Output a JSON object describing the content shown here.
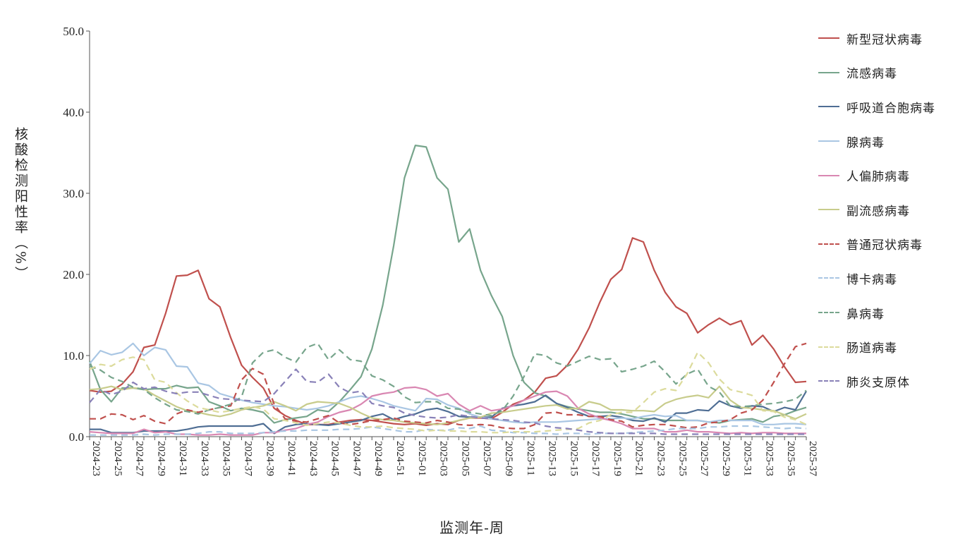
{
  "chart_data": {
    "type": "line",
    "title": "",
    "ylabel": "核酸检测阳性率（%）",
    "xlabel": "监测年-周",
    "ylim": [
      0,
      50
    ],
    "ytick_labels": [
      "0.0",
      "10.0",
      "20.0",
      "30.0",
      "40.0",
      "50.0"
    ],
    "x": [
      "2024-23",
      "2024-24",
      "2024-25",
      "2024-26",
      "2024-27",
      "2024-28",
      "2024-29",
      "2024-30",
      "2024-31",
      "2024-32",
      "2024-33",
      "2024-34",
      "2024-35",
      "2024-36",
      "2024-37",
      "2024-38",
      "2024-39",
      "2024-40",
      "2024-41",
      "2024-42",
      "2024-43",
      "2024-44",
      "2024-45",
      "2024-46",
      "2024-47",
      "2024-48",
      "2024-49",
      "2024-50",
      "2024-51",
      "2024-52",
      "2025-01",
      "2025-02",
      "2025-03",
      "2025-04",
      "2025-05",
      "2025-06",
      "2025-07",
      "2025-08",
      "2025-09",
      "2025-10",
      "2025-11",
      "2025-12",
      "2025-13",
      "2025-14",
      "2025-15",
      "2025-16",
      "2025-17",
      "2025-18",
      "2025-19",
      "2025-20",
      "2025-21",
      "2025-22",
      "2025-23",
      "2025-24",
      "2025-25",
      "2025-26",
      "2025-27",
      "2025-28",
      "2025-29",
      "2025-30",
      "2025-31",
      "2025-32",
      "2025-33",
      "2025-34",
      "2025-35",
      "2025-36",
      "2025-37"
    ],
    "xtick_labels": [
      "2024-23",
      "2024-25",
      "2024-27",
      "2024-29",
      "2024-31",
      "2024-33",
      "2024-35",
      "2024-37",
      "2024-39",
      "2024-41",
      "2024-43",
      "2024-45",
      "2024-47",
      "2024-49",
      "2024-51",
      "2025-01",
      "2025-03",
      "2025-05",
      "2025-07",
      "2025-09",
      "2025-11",
      "2025-13",
      "2025-15",
      "2025-17",
      "2025-19",
      "2025-21",
      "2025-23",
      "2025-25",
      "2025-27",
      "2025-29",
      "2025-31",
      "2025-33",
      "2025-35",
      "2025-37"
    ],
    "legend_position": "right",
    "grid": false,
    "series": [
      {
        "name": "新型冠状病毒",
        "color": "#C0504D",
        "dash": "solid",
        "values": [
          5.7,
          5.5,
          5.6,
          6.5,
          8,
          11,
          11.3,
          15.2,
          19.8,
          19.9,
          20.5,
          17,
          16,
          12.2,
          8.8,
          7.3,
          6,
          3.5,
          2.6,
          2,
          1.5,
          1.5,
          1.5,
          1.8,
          2,
          2.1,
          2,
          1.8,
          1.6,
          1.5,
          1.6,
          1.4,
          1.6,
          1.5,
          2,
          2.3,
          2.3,
          2.2,
          3,
          4,
          4.5,
          5.5,
          7.2,
          7.5,
          8.8,
          10.8,
          13.4,
          16.6,
          19.4,
          20.6,
          24.5,
          24,
          20.5,
          17.8,
          16,
          15.2,
          12.8,
          13.8,
          14.6,
          13.8,
          14.3,
          11.3,
          12.5,
          10.8,
          8.6,
          6.7,
          6.8
        ]
      },
      {
        "name": "流感病毒",
        "color": "#77A58C",
        "dash": "solid",
        "values": [
          9.3,
          5.8,
          4.3,
          6,
          6,
          5.8,
          5.9,
          5.9,
          6.3,
          6,
          6.1,
          4.3,
          3.8,
          3.2,
          3.5,
          3.3,
          3,
          1.7,
          2.1,
          2.3,
          2.5,
          3.3,
          3.1,
          4.3,
          5.8,
          7.4,
          10.8,
          16.2,
          23.5,
          31.9,
          35.9,
          35.7,
          31.9,
          30.5,
          24,
          25.6,
          20.5,
          17.4,
          14.8,
          10,
          6.7,
          5.4,
          5,
          4.1,
          3.7,
          3.4,
          3.2,
          3,
          3,
          2.8,
          2.5,
          2.2,
          2.2,
          2,
          2,
          2,
          2,
          1.8,
          1.7,
          2,
          2.1,
          2.2,
          1.8,
          2.5,
          2.7,
          3.2,
          3.6
        ]
      },
      {
        "name": "呼吸道合胞病毒",
        "color": "#4F6E94",
        "dash": "solid",
        "values": [
          0.9,
          0.9,
          0.5,
          0.5,
          0.5,
          0.7,
          0.7,
          0.7,
          0.7,
          0.9,
          1.2,
          1.3,
          1.3,
          1.3,
          1.3,
          1.3,
          1.6,
          0.4,
          1.2,
          1.5,
          1.6,
          1.5,
          1.4,
          1.6,
          1.8,
          2,
          2.5,
          2.8,
          2.1,
          2.5,
          2.8,
          3.3,
          3.5,
          3.1,
          2.5,
          2.4,
          2.4,
          2.4,
          3.5,
          3.8,
          4,
          4.3,
          5.1,
          4.1,
          3.6,
          3,
          2.5,
          2.5,
          2.6,
          2.4,
          2,
          1.9,
          2.3,
          1.8,
          2.9,
          2.9,
          3.3,
          3.2,
          4.4,
          3.8,
          3.5,
          3.8,
          3.7,
          3.1,
          3.6,
          3.3,
          5.6
        ]
      },
      {
        "name": "腺病毒",
        "color": "#A9C6E3",
        "dash": "solid",
        "values": [
          9,
          10.6,
          10.1,
          10.4,
          11.5,
          10,
          11,
          10.7,
          8.7,
          8.6,
          6.6,
          6.3,
          5.3,
          4.9,
          4.5,
          4.2,
          4,
          3.8,
          3.7,
          3.5,
          3.3,
          3.5,
          3.8,
          4.3,
          4.8,
          5,
          4.7,
          4.3,
          3.8,
          3.5,
          3.2,
          4.7,
          4.6,
          3.9,
          3.5,
          2.8,
          2.4,
          2.2,
          2,
          1.8,
          1.7,
          1.8,
          1.8,
          1.8,
          1.9,
          2,
          2.1,
          2.2,
          2.2,
          2.3,
          2.2,
          2.5,
          2.7,
          2.5,
          2.6,
          2,
          2,
          1.8,
          2,
          2,
          2,
          2,
          1.5,
          1.5,
          1.6,
          1.6,
          1.5
        ]
      },
      {
        "name": "人偏肺病毒",
        "color": "#D987B2",
        "dash": "solid",
        "values": [
          0.6,
          0.5,
          0.4,
          0.4,
          0.4,
          0.9,
          0.5,
          0.6,
          0.3,
          0.3,
          0.2,
          0.2,
          0.3,
          0.2,
          0.2,
          0.2,
          0.5,
          0.5,
          0.8,
          1,
          1.5,
          1.8,
          2.5,
          3,
          3.3,
          4,
          5,
          5.3,
          5.5,
          6,
          6.1,
          5.8,
          5,
          5.3,
          4,
          3.2,
          3.8,
          3.2,
          3.4,
          3.8,
          4.5,
          5,
          5.5,
          5.6,
          5,
          3.5,
          2.8,
          2.3,
          2,
          1.6,
          1,
          1,
          1,
          0.6,
          0.6,
          0.8,
          0.6,
          0.6,
          0.5,
          0.4,
          0.5,
          0.4,
          0.5,
          0.5,
          0.4,
          0.4,
          0.4
        ]
      },
      {
        "name": "副流感病毒",
        "color": "#C8CC8C",
        "dash": "solid",
        "values": [
          5.8,
          5.9,
          6.2,
          5.8,
          6,
          5.9,
          5.1,
          4.4,
          3.7,
          3.2,
          3,
          2.7,
          2.5,
          2.8,
          3.3,
          3.6,
          3.8,
          4.3,
          3.8,
          3.2,
          4,
          4.3,
          4.2,
          4.1,
          3.6,
          2.9,
          2.3,
          2.1,
          2,
          1.8,
          1.7,
          1.6,
          1.5,
          1.7,
          2,
          2.3,
          2.4,
          2.9,
          3,
          3.2,
          3.4,
          3.6,
          3.8,
          3.9,
          3.4,
          3.5,
          4.3,
          4,
          3.3,
          3.3,
          3.2,
          3.2,
          3.1,
          4.1,
          4.6,
          4.9,
          5.1,
          4.8,
          6.2,
          4.5,
          3.6,
          3.5,
          3.3,
          3.2,
          2.7,
          2.2,
          2.8
        ]
      },
      {
        "name": "普通冠状病毒",
        "color": "#C0504D",
        "dash": "dashed",
        "values": [
          2.2,
          2.2,
          2.8,
          2.7,
          2.1,
          2.6,
          1.9,
          1.6,
          2.8,
          3.3,
          3,
          3.3,
          3.6,
          3.8,
          7,
          8.4,
          7.7,
          4,
          2.2,
          1.9,
          1.8,
          2.2,
          2.6,
          1.7,
          1.5,
          1.7,
          2,
          2.1,
          2.3,
          1.9,
          1.8,
          1.7,
          2,
          1.8,
          1.5,
          1.4,
          1.5,
          1.4,
          1.1,
          1,
          1,
          1.5,
          2.9,
          3,
          2.7,
          2.7,
          2.5,
          2.5,
          2.1,
          1.9,
          1.2,
          1.4,
          1.5,
          1.5,
          1.3,
          1.1,
          1.2,
          1.7,
          1.8,
          2.1,
          2.9,
          3.3,
          4.5,
          6.7,
          9,
          11.1,
          11.5
        ]
      },
      {
        "name": "博卡病毒",
        "color": "#A9C6E3",
        "dash": "dashed",
        "values": [
          0.2,
          0.2,
          0.2,
          0.2,
          0.2,
          0.3,
          0.2,
          0.3,
          0.3,
          0.3,
          0.4,
          0.6,
          0.6,
          0.4,
          0.4,
          0.4,
          0.5,
          0.6,
          0.7,
          0.7,
          0.8,
          0.8,
          0.8,
          0.9,
          0.9,
          1,
          1.2,
          1,
          0.8,
          0.6,
          0.6,
          0.9,
          0.8,
          0.8,
          1.1,
          1,
          1.3,
          0.8,
          0.7,
          0.5,
          0.5,
          0.4,
          0.4,
          0.3,
          0.4,
          0.4,
          0.3,
          0.4,
          0.4,
          0.4,
          0.5,
          0.6,
          0.7,
          0.8,
          1,
          1,
          1,
          1.2,
          1.2,
          1.3,
          1.3,
          1.3,
          1.2,
          1.1,
          1,
          1.1,
          1
        ]
      },
      {
        "name": "鼻病毒",
        "color": "#77A58C",
        "dash": "dashed",
        "values": [
          8.7,
          8.2,
          7.3,
          6.8,
          6.1,
          5.8,
          4.8,
          4,
          3.3,
          3.1,
          2.8,
          3.3,
          3.6,
          4,
          4.9,
          9.1,
          10.4,
          10.7,
          9.8,
          9.2,
          11,
          11.5,
          9.5,
          10.7,
          9.5,
          9.3,
          7.5,
          7,
          6.2,
          4.9,
          4.2,
          4.3,
          4.3,
          3.5,
          3.4,
          3,
          2.8,
          2.6,
          3.2,
          5,
          7.4,
          10.2,
          10,
          9.1,
          8.7,
          9.3,
          9.9,
          9.5,
          9.6,
          8,
          8.3,
          8.7,
          9.3,
          8,
          6.5,
          7.7,
          8.3,
          6.2,
          5.5,
          3.8,
          3.7,
          3.8,
          4,
          4.1,
          4.3,
          4.6,
          5.7
        ]
      },
      {
        "name": "肠道病毒",
        "color": "#DCDB9C",
        "dash": "dashed",
        "values": [
          8.3,
          8.9,
          8.7,
          9.5,
          9.8,
          9.5,
          7,
          6.7,
          5.4,
          4.4,
          3.6,
          3.3,
          3,
          3.2,
          3.5,
          3.7,
          3.4,
          2.2,
          2,
          1.7,
          1.4,
          1.6,
          1.8,
          1.7,
          1.4,
          1.2,
          1.2,
          1.3,
          1.1,
          1,
          0.9,
          0.7,
          0.8,
          0.7,
          0.7,
          0.6,
          0.6,
          0.5,
          0.5,
          0.6,
          0.6,
          0.6,
          0.7,
          0.8,
          0.9,
          1,
          1.7,
          2,
          2.7,
          3,
          3,
          4.2,
          5.5,
          5.9,
          5.7,
          7.7,
          10.4,
          9.1,
          7.1,
          5.8,
          5.5,
          5.1,
          3.2,
          3.1,
          2.4,
          2.1,
          1.5
        ]
      },
      {
        "name": "肺炎支原体",
        "color": "#8981B8",
        "dash": "dashed",
        "values": [
          4.2,
          5.8,
          5.2,
          5.6,
          6.7,
          5.9,
          6.1,
          5.6,
          5.3,
          5.5,
          5.5,
          5.1,
          4.7,
          4.6,
          4.5,
          4.4,
          4.3,
          5.3,
          6.8,
          8.3,
          6.8,
          6.7,
          7.7,
          6.1,
          5.4,
          5.6,
          4.1,
          3.8,
          3.6,
          2.9,
          2.6,
          2.4,
          2.3,
          2.4,
          2.7,
          2.5,
          2.3,
          2.2,
          2.1,
          2,
          1.8,
          1.7,
          1.3,
          1.1,
          1,
          0.8,
          0.6,
          0.5,
          0.4,
          0.4,
          0.4,
          0.4,
          0.4,
          0.3,
          0.3,
          0.3,
          0.3,
          0.3,
          0.3,
          0.3,
          0.3,
          0.3,
          0.3,
          0.3,
          0.3,
          0.3,
          0.3
        ]
      }
    ]
  }
}
